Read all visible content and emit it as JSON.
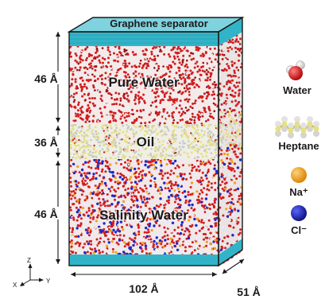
{
  "colors": {
    "separator": "#32b4c8",
    "water_oxygen": "#d21e1e",
    "hydrogen": "#f0f0f0",
    "oil_carbon": "#e6e082",
    "oil_gray": "#c8c8c8",
    "sodium": "#f0a01e",
    "chloride": "#1e28c8",
    "frame": "#1a1a1a"
  },
  "separator_label": "Graphene separator",
  "layers": [
    {
      "name": "Pure Water",
      "thickness": "46 Å",
      "composition": "water"
    },
    {
      "name": "Oil",
      "thickness": "36 Å",
      "composition": "heptane"
    },
    {
      "name": "Salinity Water",
      "thickness": "46 Å",
      "composition": "brine"
    }
  ],
  "box": {
    "width_label": "102 Å",
    "depth_label": "51 Å"
  },
  "axes": {
    "z": "Z",
    "x": "X",
    "y": "Y"
  },
  "legend": [
    {
      "label": "Water",
      "icon": "water-molecule-icon"
    },
    {
      "label": "Heptane",
      "icon": "heptane-molecule-icon"
    },
    {
      "label": "Na⁺",
      "icon": "sodium-ion-icon"
    },
    {
      "label": "Cl⁻",
      "icon": "chloride-ion-icon"
    }
  ]
}
